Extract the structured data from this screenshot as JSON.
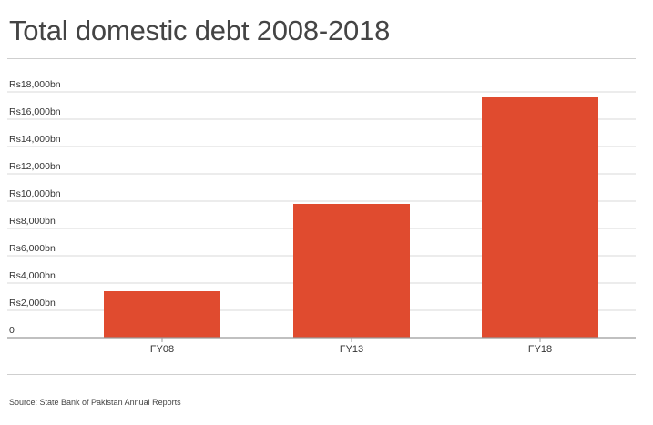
{
  "header": {
    "title": "Total domestic debt 2008-2018"
  },
  "footer": {
    "source": "Source: State Bank of Pakistan Annual Reports"
  },
  "colors": {
    "bar": "#e04b2f",
    "grid": "#dadada",
    "axis": "#9a9a9a",
    "text": "#333333"
  },
  "chart_data": {
    "type": "bar",
    "title": "Total domestic debt 2008-2018",
    "categories": [
      "FY08",
      "FY13",
      "FY18"
    ],
    "values": [
      3400,
      9800,
      17600
    ],
    "ylim": [
      0,
      18000
    ],
    "yticks": [
      0,
      2000,
      4000,
      6000,
      8000,
      10000,
      12000,
      14000,
      16000,
      18000
    ],
    "ytick_labels": [
      "0",
      "Rs2,000bn",
      "Rs4,000bn",
      "Rs6,000bn",
      "Rs8,000bn",
      "Rs10,000bn",
      "Rs12,000bn",
      "Rs14,000bn",
      "Rs16,000bn",
      "Rs18,000bn"
    ],
    "grid": true,
    "xlabel": "",
    "ylabel": ""
  }
}
